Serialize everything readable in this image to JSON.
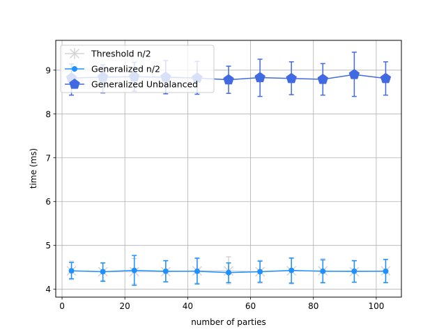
{
  "chart_data": {
    "type": "line",
    "title": "",
    "xlabel": "number of parties",
    "ylabel": "time (ms)",
    "xlim": [
      -2,
      108
    ],
    "ylim": [
      3.82,
      9.68
    ],
    "xticks": [
      0,
      20,
      40,
      60,
      80,
      100
    ],
    "yticks": [
      4,
      5,
      6,
      7,
      8,
      9
    ],
    "grid": true,
    "legend_position": "upper-left",
    "x": [
      3,
      13,
      23,
      33,
      43,
      53,
      63,
      73,
      83,
      93,
      103
    ],
    "series": [
      {
        "name": "Threshold n/2",
        "color": "#d3d3d3",
        "marker": "x",
        "values": [
          4.42,
          4.4,
          4.4,
          4.4,
          4.42,
          4.42,
          4.4,
          4.42,
          4.42,
          4.4,
          4.42
        ],
        "err_low": [
          4.22,
          4.2,
          4.12,
          4.16,
          4.14,
          4.12,
          4.14,
          4.12,
          4.14,
          4.16,
          4.15
        ],
        "err_high": [
          4.64,
          4.6,
          4.7,
          4.66,
          4.7,
          4.74,
          4.66,
          4.72,
          4.7,
          4.66,
          4.68
        ]
      },
      {
        "name": "Generalized n/2",
        "color": "#1e90ff",
        "marker": "o",
        "values": [
          4.42,
          4.4,
          4.43,
          4.41,
          4.41,
          4.38,
          4.4,
          4.43,
          4.41,
          4.41,
          4.41
        ],
        "err_low": [
          4.24,
          4.18,
          4.09,
          4.17,
          4.12,
          4.15,
          4.16,
          4.14,
          4.15,
          4.16,
          4.15
        ],
        "err_high": [
          4.61,
          4.6,
          4.77,
          4.65,
          4.71,
          4.6,
          4.64,
          4.71,
          4.67,
          4.65,
          4.68
        ]
      },
      {
        "name": "Generalized Unbalanced",
        "color": "#4169e1",
        "marker": "pentagon",
        "values": [
          8.82,
          8.84,
          8.85,
          8.84,
          8.82,
          8.78,
          8.83,
          8.81,
          8.79,
          8.9,
          8.81
        ],
        "err_low": [
          8.43,
          8.48,
          8.52,
          8.46,
          8.45,
          8.47,
          8.4,
          8.44,
          8.43,
          8.4,
          8.43
        ],
        "err_high": [
          9.14,
          9.12,
          9.18,
          9.22,
          9.2,
          9.09,
          9.25,
          9.19,
          9.15,
          9.41,
          9.19
        ]
      }
    ]
  }
}
